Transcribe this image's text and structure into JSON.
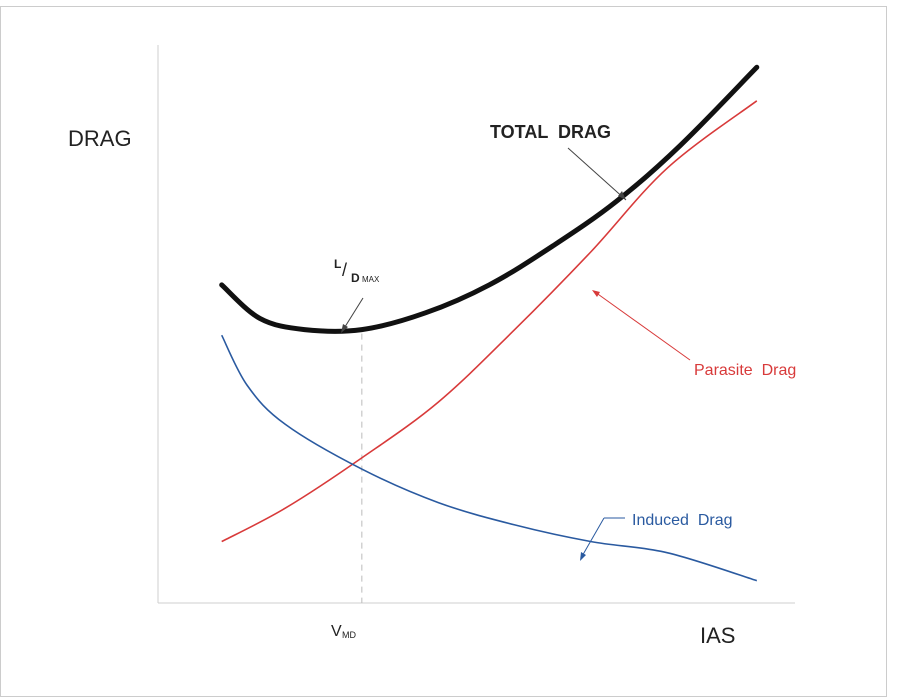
{
  "chart_data": {
    "type": "line",
    "title": "",
    "ylabel": "DRAG",
    "xlabel": "IAS",
    "xlim": [
      0,
      10
    ],
    "ylim": [
      0,
      10
    ],
    "grid": false,
    "legend": "none",
    "series": [
      {
        "name": "TOTAL DRAG",
        "color": "#111111",
        "x": [
          1.0,
          1.6,
          2.3,
          3.2,
          4.2,
          5.2,
          6.2,
          7.2,
          8.2,
          9.4
        ],
        "y": [
          5.7,
          5.1,
          4.9,
          4.9,
          5.2,
          5.7,
          6.4,
          7.2,
          8.2,
          9.6
        ]
      },
      {
        "name": "Parasite Drag",
        "color": "#d83a3a",
        "x": [
          1.0,
          2.0,
          3.2,
          4.4,
          5.6,
          6.8,
          8.0,
          9.4
        ],
        "y": [
          1.1,
          1.7,
          2.6,
          3.6,
          4.9,
          6.3,
          7.8,
          9.0
        ]
      },
      {
        "name": "Induced Drag",
        "color": "#2a5aa0",
        "x": [
          1.0,
          1.4,
          2.0,
          3.2,
          4.4,
          5.6,
          6.8,
          8.0,
          9.4
        ],
        "y": [
          4.8,
          3.9,
          3.2,
          2.4,
          1.8,
          1.4,
          1.1,
          0.9,
          0.4
        ]
      }
    ],
    "annotations": {
      "total_drag": "TOTAL  DRAG",
      "parasite_drag": "Parasite  Drag",
      "induced_drag": "Induced  Drag",
      "ld_max": {
        "L": "L",
        "slash": "/",
        "D": "D",
        "sub": "MAX"
      },
      "vmd": {
        "V": "V",
        "sub": "MD"
      }
    },
    "vmd_x": 3.2
  }
}
